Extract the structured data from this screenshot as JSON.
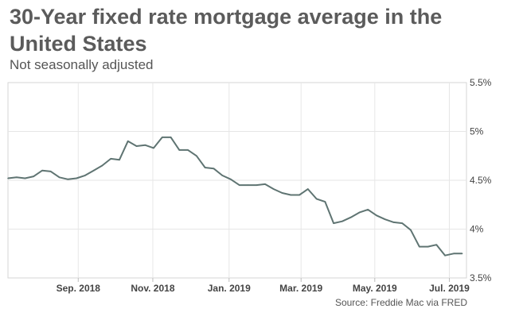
{
  "chart_data": {
    "type": "line",
    "title": "30-Year fixed rate mortgage average in the United States",
    "subtitle": "Not seasonally adjusted",
    "source": "Source: Freddie Mac via FRED",
    "xlabel": "",
    "ylabel": "",
    "x_unit": "weeks since 2018-07-05",
    "xlim": [
      0,
      53.5
    ],
    "ylim": [
      3.5,
      5.5
    ],
    "grid": true,
    "line_color": "#5f7472",
    "x_ticks": [
      {
        "label": "Sep. 2018",
        "x": 8.2
      },
      {
        "label": "Nov. 2018",
        "x": 16.9
      },
      {
        "label": "Jan. 2019",
        "x": 25.8
      },
      {
        "label": "Mar. 2019",
        "x": 34.2
      },
      {
        "label": "May. 2019",
        "x": 42.8
      },
      {
        "label": "Jul. 2019",
        "x": 51.5
      }
    ],
    "y_ticks": [
      {
        "label": "5.5%",
        "y": 5.5
      },
      {
        "label": "5%",
        "y": 5.0
      },
      {
        "label": "4.5%",
        "y": 4.5
      },
      {
        "label": "4%",
        "y": 4.0
      },
      {
        "label": "3.5%",
        "y": 3.5
      }
    ],
    "series": [
      {
        "name": "30-Year fixed rate mortgage average",
        "x": [
          0,
          1,
          2,
          3,
          4,
          5,
          6,
          7,
          8,
          9,
          10,
          11,
          12,
          13,
          14,
          15,
          16,
          17,
          18,
          19,
          20,
          21,
          22,
          23,
          24,
          25,
          26,
          27,
          28,
          29,
          30,
          31,
          32,
          33,
          34,
          35,
          36,
          37,
          38,
          39,
          40,
          41,
          42,
          43,
          44,
          45,
          46,
          47,
          48,
          49,
          50,
          51,
          52,
          53
        ],
        "values": [
          4.52,
          4.53,
          4.52,
          4.54,
          4.6,
          4.59,
          4.53,
          4.51,
          4.52,
          4.55,
          4.6,
          4.65,
          4.72,
          4.71,
          4.9,
          4.85,
          4.86,
          4.83,
          4.94,
          4.94,
          4.81,
          4.81,
          4.75,
          4.63,
          4.62,
          4.55,
          4.51,
          4.45,
          4.45,
          4.45,
          4.46,
          4.41,
          4.37,
          4.35,
          4.35,
          4.41,
          4.31,
          4.28,
          4.06,
          4.08,
          4.12,
          4.17,
          4.2,
          4.14,
          4.1,
          4.07,
          4.06,
          3.99,
          3.82,
          3.82,
          3.84,
          3.73,
          3.75,
          3.75
        ]
      }
    ]
  }
}
